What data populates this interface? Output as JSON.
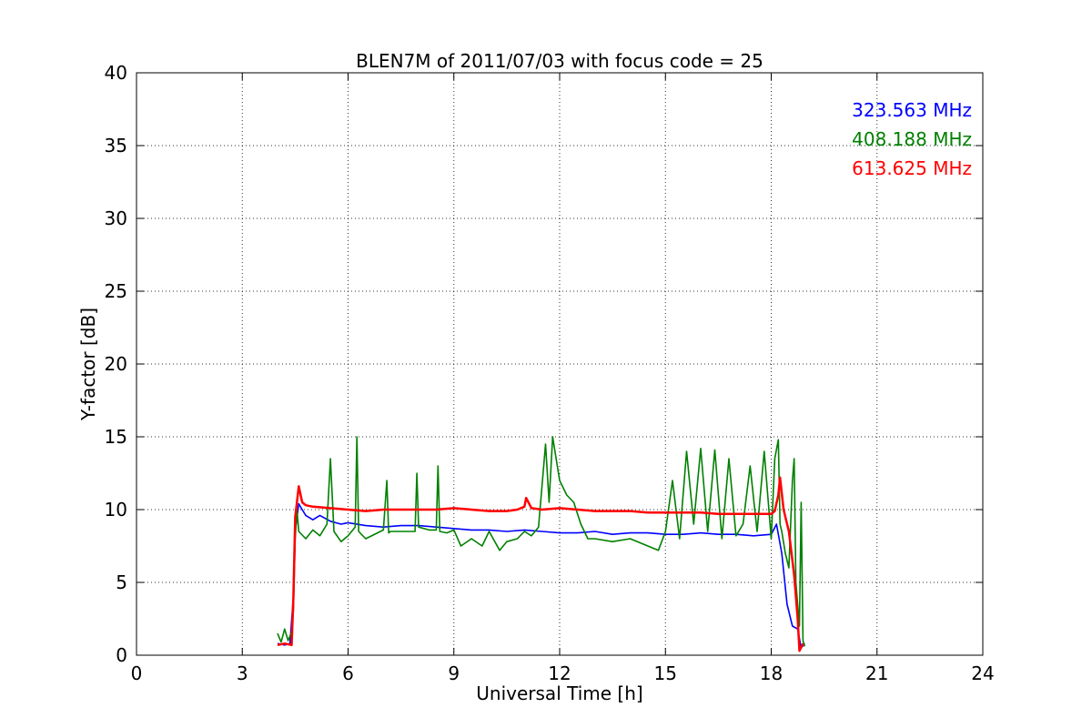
{
  "chart_data": {
    "type": "line",
    "title": "BLEN7M of 2011/07/03 with focus code = 25",
    "xlabel": "Universal Time [h]",
    "ylabel": "Y-factor [dB]",
    "xlim": [
      0,
      24
    ],
    "ylim": [
      0,
      40
    ],
    "xticks": [
      0,
      3,
      6,
      9,
      12,
      15,
      18,
      21,
      24
    ],
    "yticks": [
      0,
      5,
      10,
      15,
      20,
      25,
      30,
      35,
      40
    ],
    "xtick_labels": [
      "0",
      "3",
      "6",
      "9",
      "12",
      "15",
      "18",
      "21",
      "24"
    ],
    "ytick_labels": [
      "0",
      "5",
      "10",
      "15",
      "20",
      "25",
      "30",
      "35",
      "40"
    ],
    "grid": true,
    "legend_position": "top-right",
    "series": [
      {
        "name": "323.563 MHz",
        "color": "#0000ff",
        "x": [
          4.0,
          4.2,
          4.35,
          4.45,
          4.5,
          4.6,
          4.7,
          4.8,
          5.0,
          5.2,
          5.5,
          5.8,
          6.0,
          6.5,
          7.0,
          7.5,
          8.0,
          8.5,
          9.0,
          9.5,
          10.0,
          10.5,
          11.0,
          11.5,
          12.0,
          12.5,
          13.0,
          13.5,
          14.0,
          14.5,
          15.0,
          15.5,
          16.0,
          16.5,
          17.0,
          17.5,
          18.0,
          18.15,
          18.3,
          18.45,
          18.6,
          18.75,
          18.85,
          18.95
        ],
        "y": [
          0.8,
          0.7,
          0.8,
          4.0,
          8.5,
          10.4,
          10.0,
          9.6,
          9.3,
          9.6,
          9.2,
          9.0,
          9.1,
          8.9,
          8.8,
          8.9,
          8.9,
          8.8,
          8.7,
          8.6,
          8.6,
          8.5,
          8.6,
          8.5,
          8.4,
          8.4,
          8.5,
          8.3,
          8.4,
          8.4,
          8.3,
          8.3,
          8.4,
          8.3,
          8.3,
          8.2,
          8.3,
          9.0,
          7.0,
          3.5,
          2.0,
          1.8,
          0.5,
          0.8
        ]
      },
      {
        "name": "408.188 MHz",
        "color": "#008000",
        "x": [
          4.0,
          4.1,
          4.2,
          4.3,
          4.4,
          4.45,
          4.5,
          4.55,
          4.6,
          4.8,
          5.0,
          5.2,
          5.4,
          5.5,
          5.6,
          5.8,
          6.0,
          6.2,
          6.25,
          6.3,
          6.5,
          7.0,
          7.1,
          7.15,
          7.2,
          7.5,
          7.9,
          7.95,
          8.0,
          8.3,
          8.5,
          8.55,
          8.6,
          8.8,
          9.0,
          9.2,
          9.5,
          9.8,
          10.0,
          10.3,
          10.5,
          10.8,
          11.0,
          11.2,
          11.4,
          11.6,
          11.7,
          11.8,
          12.0,
          12.2,
          12.4,
          12.6,
          12.8,
          13.0,
          13.5,
          14.0,
          14.5,
          14.8,
          15.0,
          15.2,
          15.4,
          15.6,
          15.8,
          16.0,
          16.2,
          16.4,
          16.6,
          16.8,
          17.0,
          17.2,
          17.4,
          17.6,
          17.8,
          18.0,
          18.1,
          18.2,
          18.25,
          18.3,
          18.4,
          18.5,
          18.6,
          18.65,
          18.7,
          18.8,
          18.85,
          18.9,
          18.95
        ],
        "y": [
          1.5,
          0.9,
          1.8,
          1.0,
          1.6,
          3.0,
          8.0,
          10.0,
          8.5,
          8.0,
          8.6,
          8.2,
          9.0,
          13.5,
          8.5,
          7.8,
          8.2,
          8.8,
          15.0,
          8.5,
          8.0,
          8.6,
          12.0,
          8.4,
          8.5,
          8.5,
          8.5,
          12.5,
          8.8,
          8.6,
          8.6,
          13.0,
          8.5,
          8.4,
          8.6,
          7.5,
          8.0,
          7.5,
          8.5,
          7.2,
          7.8,
          8.0,
          8.5,
          8.2,
          8.8,
          14.5,
          10.5,
          15.0,
          12.0,
          11.0,
          10.5,
          9.0,
          8.0,
          8.0,
          7.8,
          8.0,
          7.5,
          7.2,
          8.5,
          12.0,
          8.0,
          14.0,
          9.0,
          14.2,
          8.5,
          14.1,
          8.0,
          13.5,
          8.2,
          9.0,
          13.0,
          8.5,
          14.0,
          8.0,
          13.5,
          14.8,
          9.0,
          8.5,
          7.0,
          6.0,
          12.0,
          13.5,
          5.0,
          2.0,
          10.5,
          1.0,
          0.6
        ]
      },
      {
        "name": "613.625 MHz",
        "color": "#ff0000",
        "x": [
          4.0,
          4.2,
          4.4,
          4.45,
          4.5,
          4.55,
          4.6,
          4.7,
          4.8,
          5.0,
          5.5,
          6.0,
          6.5,
          7.0,
          7.5,
          8.0,
          8.5,
          9.0,
          9.5,
          10.0,
          10.5,
          10.8,
          11.0,
          11.05,
          11.2,
          11.5,
          12.0,
          12.5,
          13.0,
          13.5,
          14.0,
          14.5,
          15.0,
          15.5,
          16.0,
          16.5,
          17.0,
          17.5,
          18.0,
          18.1,
          18.2,
          18.25,
          18.35,
          18.5,
          18.65,
          18.75,
          18.8,
          18.9
        ],
        "y": [
          0.7,
          0.8,
          0.7,
          4.0,
          9.5,
          10.5,
          11.6,
          10.5,
          10.3,
          10.2,
          10.1,
          10.0,
          9.9,
          10.0,
          10.0,
          10.0,
          10.0,
          10.1,
          10.0,
          9.9,
          9.9,
          10.0,
          10.2,
          10.8,
          10.1,
          10.0,
          10.1,
          10.0,
          9.9,
          9.9,
          9.9,
          9.8,
          9.8,
          9.8,
          9.8,
          9.7,
          9.7,
          9.7,
          9.7,
          9.9,
          11.0,
          12.2,
          10.0,
          8.5,
          5.5,
          2.5,
          0.3,
          0.8
        ]
      }
    ]
  }
}
